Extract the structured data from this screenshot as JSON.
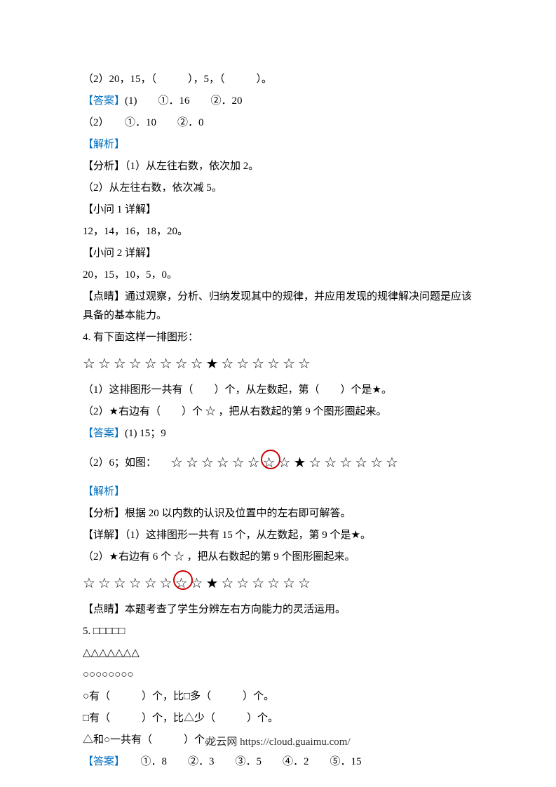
{
  "line1": "（2）20，15，（　　　），5，（　　　）。",
  "line2_label": "【答案】",
  "line2_text": "(1)　　①．16　　②．20",
  "line3": "（2）　　①．10　　②．0",
  "line4_label": "【解析】",
  "line5": "【分析】（1）从左往右数，依次加 2。",
  "line6": "（2）从左往右数，依次减 5。",
  "line7": "【小问 1 详解】",
  "line8": "12，14，16，18，20。",
  "line9": "【小问 2 详解】",
  "line10": "20，15，10，5，0。",
  "line11": "【点睛】通过观察，分析、归纳发现其中的规律，并应用发现的规律解决问题是应该具备的基本能力。",
  "line12": "4. 有下面这样一排图形：",
  "stars_q4": "☆☆☆☆☆☆☆☆★☆☆☆☆☆☆",
  "line13_a": "（1）这排图形一共有（　　）个，从左数起，第（　　）个是 ",
  "line13_b": "★",
  "line13_c": " 。",
  "line14_a": "（2） ",
  "line14_b": "★",
  "line14_c": " 右边有（　　）个 ☆ ，把从右数起的第 9 个图形圈起来。",
  "line15_label": "【答案】",
  "line15_text": "(1) 15；9",
  "line16_prefix": "（2）6；如图：",
  "stars_ans_before": "☆☆☆☆☆☆",
  "stars_ans_circled": "☆",
  "stars_ans_after": "☆★☆☆☆☆☆☆",
  "line17_label": "【解析】",
  "line18": "【分析】根据 20 以内数的认识及位置中的左右即可解答。",
  "line19_a": "【详解】（1）这排图形一共有 15 个，从左数起，第 9 个是 ",
  "line19_b": "★",
  "line19_c": " 。",
  "line20_a": "（2） ",
  "line20_b": "★",
  "line20_c": " 右边有 6 个 ☆ ，把从右数起的第 9 个图形圈起来。",
  "stars_detail_before": "☆☆☆☆☆☆",
  "stars_detail_circled": "☆",
  "stars_detail_after": "☆★☆☆☆☆☆☆",
  "line21": "【点睛】本题考查了学生分辨左右方向能力的灵活运用。",
  "line22": "5. □□□□□",
  "line23": "△△△△△△△",
  "line24": "○○○○○○○○",
  "line25": "○有（　　　）个，比□多（　　　）个。",
  "line26": "□有（　　　）个，比△少（　　　）个。",
  "line27": "△和○一共有（　　　）个。",
  "line28_label": "【答案】",
  "line28_text": "　　①．8　　②．3　　③．5　　④．2　　⑤．15",
  "footer": "龙云网 https://cloud.guaimu.com/"
}
